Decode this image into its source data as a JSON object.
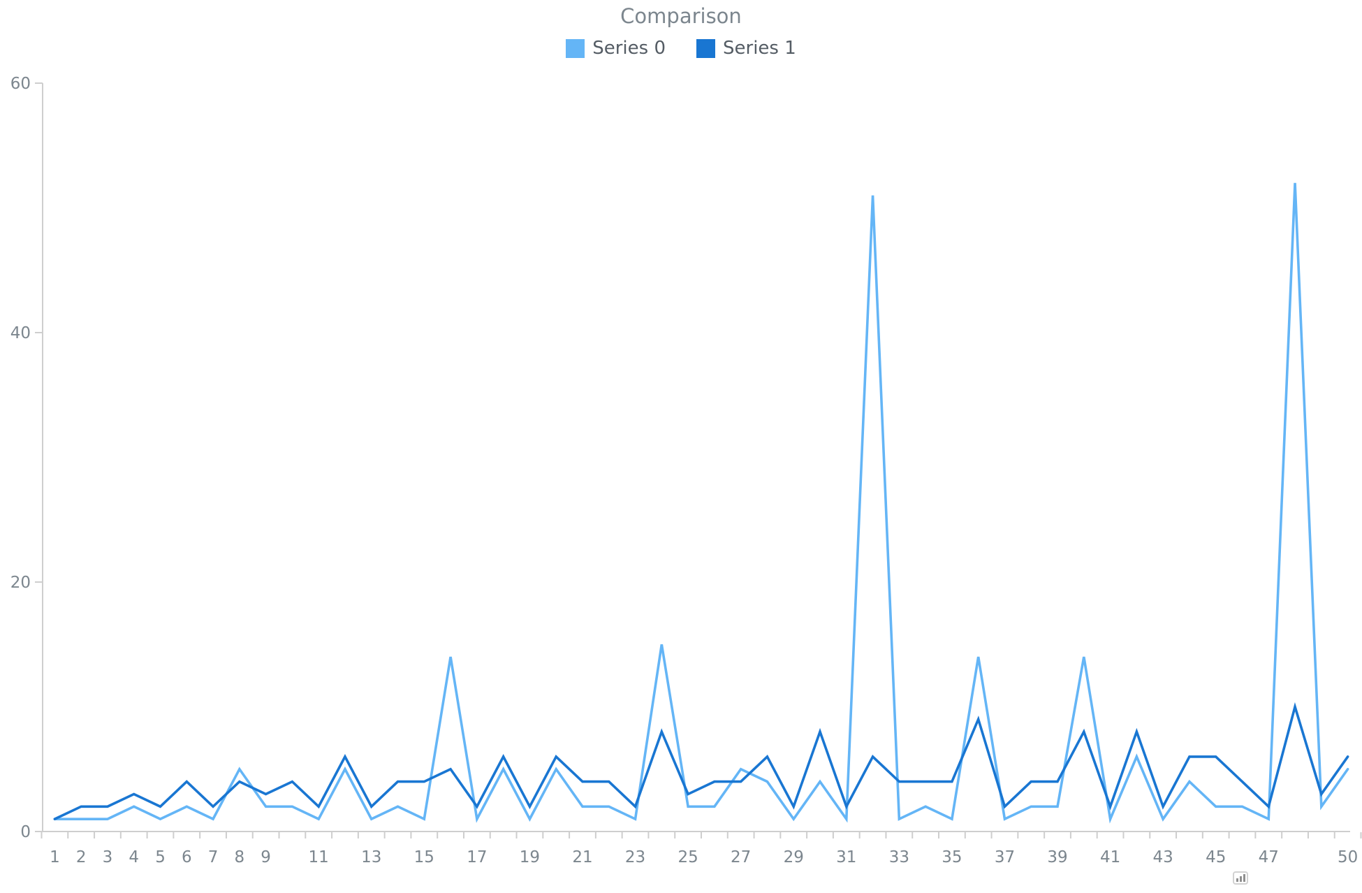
{
  "title": "Comparison",
  "legend": {
    "items": [
      {
        "label": "Series 0",
        "color": "#64b5f6"
      },
      {
        "label": "Series 1",
        "color": "#1976d2"
      }
    ]
  },
  "credits_icon": "bar-chart-icon",
  "chart_data": {
    "type": "line",
    "title": "Comparison",
    "xlabel": "",
    "ylabel": "",
    "x": [
      1,
      2,
      3,
      4,
      5,
      6,
      7,
      8,
      9,
      10,
      11,
      12,
      13,
      14,
      15,
      16,
      17,
      18,
      19,
      20,
      21,
      22,
      23,
      24,
      25,
      26,
      27,
      28,
      29,
      30,
      31,
      32,
      33,
      34,
      35,
      36,
      37,
      38,
      39,
      40,
      41,
      42,
      43,
      44,
      45,
      46,
      47,
      48,
      49,
      50
    ],
    "series": [
      {
        "name": "Series 0",
        "color": "#64b5f6",
        "values": [
          1,
          1,
          1,
          2,
          1,
          2,
          1,
          5,
          2,
          2,
          1,
          5,
          1,
          2,
          1,
          14,
          1,
          5,
          1,
          5,
          2,
          2,
          1,
          15,
          2,
          2,
          5,
          4,
          1,
          4,
          1,
          51,
          1,
          2,
          1,
          14,
          1,
          2,
          2,
          14,
          1,
          6,
          1,
          4,
          2,
          2,
          1,
          52,
          2,
          5
        ]
      },
      {
        "name": "Series 1",
        "color": "#1976d2",
        "values": [
          1,
          2,
          2,
          3,
          2,
          4,
          2,
          4,
          3,
          4,
          2,
          6,
          2,
          4,
          4,
          5,
          2,
          6,
          2,
          6,
          4,
          4,
          2,
          8,
          3,
          4,
          4,
          6,
          2,
          8,
          2,
          6,
          4,
          4,
          4,
          9,
          2,
          4,
          4,
          8,
          2,
          8,
          2,
          6,
          6,
          4,
          2,
          10,
          3,
          6
        ]
      }
    ],
    "ylim": [
      0,
      60
    ],
    "y_ticks": [
      0,
      20,
      40,
      60
    ],
    "x_tick_positions": [
      1,
      2,
      3,
      4,
      5,
      6,
      7,
      8,
      9,
      11,
      13,
      15,
      17,
      19,
      21,
      23,
      25,
      27,
      29,
      31,
      33,
      35,
      37,
      39,
      41,
      43,
      45,
      47,
      50
    ],
    "x_tick_labels": [
      "1",
      "2",
      "3",
      "4",
      "5",
      "6",
      "7",
      "8",
      "9",
      "11",
      "13",
      "15",
      "17",
      "19",
      "21",
      "23",
      "25",
      "27",
      "29",
      "31",
      "33",
      "35",
      "37",
      "39",
      "41",
      "43",
      "45",
      "47",
      "50"
    ],
    "grid": false,
    "legend_position": "top",
    "axis_color": "#cecece",
    "tick_color": "#cecece",
    "label_color": "#7c868e",
    "line_width": 3.6
  }
}
